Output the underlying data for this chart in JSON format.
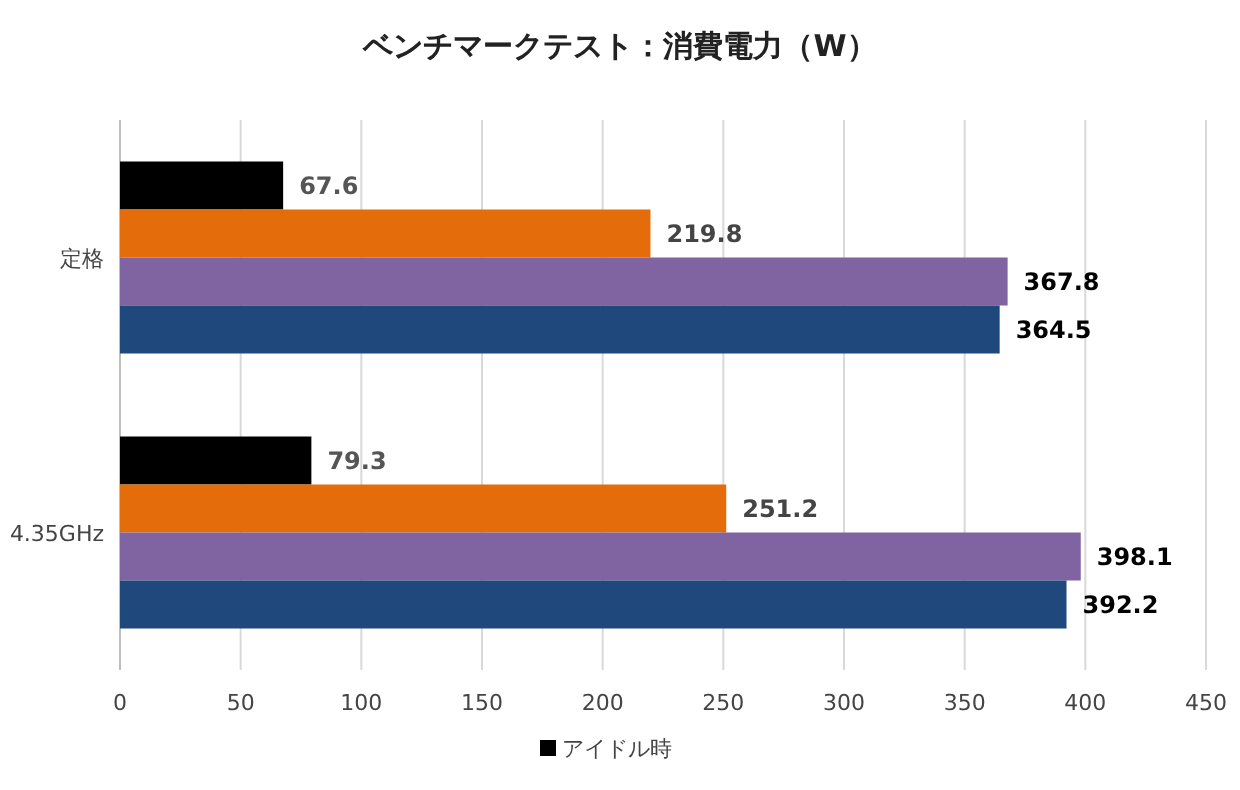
{
  "chart_data": {
    "type": "bar",
    "orientation": "horizontal",
    "title": "ベンチマークテスト：消費電力（W）",
    "categories": [
      "定格",
      "4.35GHz"
    ],
    "series": [
      {
        "name": "アイドル時",
        "color": "#000000",
        "values": [
          67.6,
          79.3
        ]
      },
      {
        "color": "#e46c0a",
        "values": [
          219.8,
          251.2
        ]
      },
      {
        "color": "#8064a2",
        "values": [
          367.8,
          398.1
        ]
      },
      {
        "color": "#1f497d",
        "values": [
          364.5,
          392.2
        ]
      }
    ],
    "xlim": [
      0,
      450
    ],
    "xticks": [
      0,
      50,
      100,
      150,
      200,
      250,
      300,
      350,
      400,
      450
    ],
    "grid": "x",
    "legend": "bottom",
    "data_labels": true
  }
}
